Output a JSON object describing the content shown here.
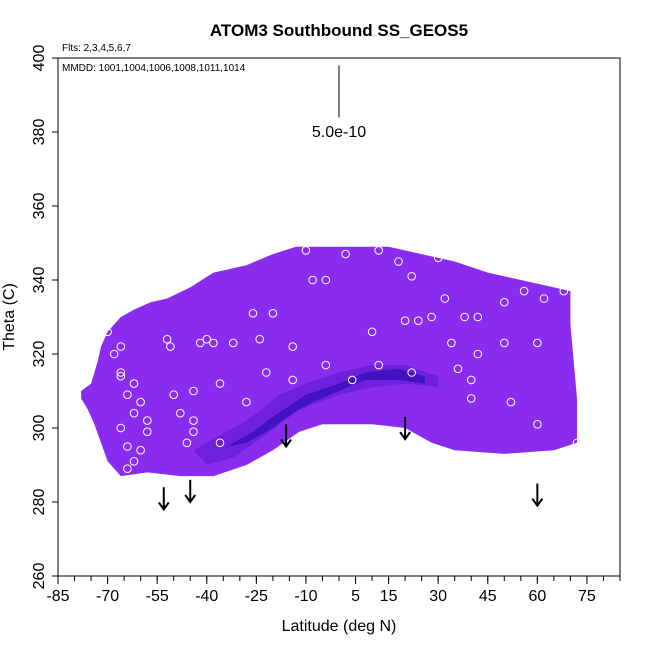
{
  "chart_data": {
    "type": "heatmap",
    "title": "ATOM3 Southbound SS_GEOS5",
    "flights_label": "Flts: 2,3,4,5,6,7",
    "mmdd_label": "MMDD: 1001,1004,1006,1008,1011,1014",
    "xlabel": "Latitude (deg N)",
    "ylabel": "Theta (C)",
    "xlim": [
      -85,
      85
    ],
    "ylim": [
      260,
      400
    ],
    "x_ticks": [
      -85,
      -70,
      -55,
      -40,
      -25,
      -10,
      5,
      15,
      30,
      45,
      60,
      75
    ],
    "x_tick_labels": [
      "-85",
      "-70",
      "-55",
      "-40",
      "-25",
      "-10",
      "5",
      "15",
      "30",
      "45",
      "60",
      "75"
    ],
    "x_minor_step": 5,
    "y_ticks": [
      260,
      280,
      300,
      320,
      340,
      360,
      380,
      400
    ],
    "y_tick_labels": [
      "260",
      "280",
      "300",
      "320",
      "340",
      "360",
      "380",
      "400"
    ],
    "scale_bar": {
      "label": "5.0e-10",
      "x": 0,
      "y_top": 398,
      "y_bottom": 384
    },
    "colors": {
      "field_base": "#8a2cf0",
      "field_mid": "#6a1fdc",
      "field_deep": "#3a10b8",
      "field_core": "#2a0aa0",
      "markers": "#ffffff"
    },
    "field_outline": [
      [
        -78,
        308
      ],
      [
        -78,
        310
      ],
      [
        -75,
        312
      ],
      [
        -73,
        318
      ],
      [
        -72,
        322
      ],
      [
        -70,
        326
      ],
      [
        -66,
        330
      ],
      [
        -62,
        332
      ],
      [
        -57,
        334
      ],
      [
        -52,
        335
      ],
      [
        -45,
        338
      ],
      [
        -38,
        342
      ],
      [
        -28,
        344
      ],
      [
        -20,
        347
      ],
      [
        -13,
        349
      ],
      [
        -5,
        349
      ],
      [
        5,
        349
      ],
      [
        15,
        349
      ],
      [
        25,
        347
      ],
      [
        35,
        345
      ],
      [
        45,
        342
      ],
      [
        55,
        340
      ],
      [
        65,
        338
      ],
      [
        70,
        337
      ],
      [
        70,
        328
      ],
      [
        71,
        318
      ],
      [
        72,
        308
      ],
      [
        72,
        296
      ],
      [
        65,
        294
      ],
      [
        50,
        293
      ],
      [
        35,
        294
      ],
      [
        28,
        296
      ],
      [
        20,
        300
      ],
      [
        10,
        301
      ],
      [
        -5,
        301
      ],
      [
        -12,
        299
      ],
      [
        -20,
        294
      ],
      [
        -28,
        290
      ],
      [
        -38,
        287
      ],
      [
        -48,
        287
      ],
      [
        -58,
        288
      ],
      [
        -66,
        287
      ],
      [
        -70,
        291
      ],
      [
        -72,
        296
      ],
      [
        -74,
        301
      ],
      [
        -76,
        305
      ]
    ],
    "deep_band": [
      [
        -44,
        294
      ],
      [
        -36,
        298
      ],
      [
        -28,
        302
      ],
      [
        -22,
        306
      ],
      [
        -18,
        309
      ],
      [
        -10,
        312
      ],
      [
        0,
        315
      ],
      [
        10,
        317
      ],
      [
        20,
        317
      ],
      [
        30,
        314
      ],
      [
        30,
        311
      ],
      [
        20,
        312
      ],
      [
        10,
        311
      ],
      [
        0,
        309
      ],
      [
        -6,
        307
      ],
      [
        -12,
        305
      ],
      [
        -18,
        301
      ],
      [
        -24,
        297
      ],
      [
        -32,
        292
      ],
      [
        -40,
        290
      ]
    ],
    "core_band": [
      [
        -34,
        295
      ],
      [
        -26,
        299
      ],
      [
        -20,
        303
      ],
      [
        -15,
        306
      ],
      [
        -10,
        309
      ],
      [
        0,
        312
      ],
      [
        8,
        315
      ],
      [
        18,
        316
      ],
      [
        26,
        314
      ],
      [
        26,
        312
      ],
      [
        18,
        313
      ],
      [
        8,
        313
      ],
      [
        0,
        310
      ],
      [
        -8,
        307
      ],
      [
        -14,
        304
      ],
      [
        -20,
        300
      ],
      [
        -28,
        296
      ]
    ],
    "markers": [
      [
        -70,
        326
      ],
      [
        -68,
        320
      ],
      [
        -66,
        322
      ],
      [
        -66,
        315
      ],
      [
        -66,
        314
      ],
      [
        -64,
        309
      ],
      [
        -62,
        312
      ],
      [
        -62,
        304
      ],
      [
        -60,
        307
      ],
      [
        -58,
        299
      ],
      [
        -58,
        302
      ],
      [
        -60,
        294
      ],
      [
        -62,
        291
      ],
      [
        -64,
        295
      ],
      [
        -66,
        300
      ],
      [
        -64,
        289
      ],
      [
        -52,
        324
      ],
      [
        -51,
        322
      ],
      [
        -50,
        309
      ],
      [
        -48,
        304
      ],
      [
        -46,
        296
      ],
      [
        -44,
        302
      ],
      [
        -44,
        299
      ],
      [
        -44,
        310
      ],
      [
        -42,
        323
      ],
      [
        -40,
        324
      ],
      [
        -38,
        323
      ],
      [
        -36,
        312
      ],
      [
        -36,
        296
      ],
      [
        -32,
        323
      ],
      [
        -28,
        307
      ],
      [
        -26,
        331
      ],
      [
        -24,
        324
      ],
      [
        -22,
        315
      ],
      [
        -20,
        331
      ],
      [
        -14,
        322
      ],
      [
        -14,
        313
      ],
      [
        -10,
        348
      ],
      [
        -8,
        340
      ],
      [
        -4,
        340
      ],
      [
        -4,
        317
      ],
      [
        2,
        347
      ],
      [
        4,
        313
      ],
      [
        10,
        326
      ],
      [
        12,
        317
      ],
      [
        12,
        348
      ],
      [
        18,
        345
      ],
      [
        20,
        329
      ],
      [
        22,
        315
      ],
      [
        22,
        341
      ],
      [
        24,
        329
      ],
      [
        28,
        330
      ],
      [
        30,
        346
      ],
      [
        32,
        335
      ],
      [
        34,
        323
      ],
      [
        36,
        316
      ],
      [
        38,
        330
      ],
      [
        40,
        313
      ],
      [
        40,
        308
      ],
      [
        42,
        320
      ],
      [
        42,
        330
      ],
      [
        50,
        334
      ],
      [
        50,
        323
      ],
      [
        52,
        307
      ],
      [
        56,
        337
      ],
      [
        60,
        323
      ],
      [
        60,
        301
      ],
      [
        62,
        335
      ],
      [
        68,
        337
      ],
      [
        72,
        296
      ]
    ],
    "arrows": [
      {
        "x": -53,
        "y_top": 284,
        "y_bottom": 278
      },
      {
        "x": -45,
        "y_top": 286,
        "y_bottom": 280
      },
      {
        "x": -16,
        "y_top": 301,
        "y_bottom": 295
      },
      {
        "x": 20,
        "y_top": 303,
        "y_bottom": 297
      },
      {
        "x": 60,
        "y_top": 285,
        "y_bottom": 279
      }
    ]
  }
}
